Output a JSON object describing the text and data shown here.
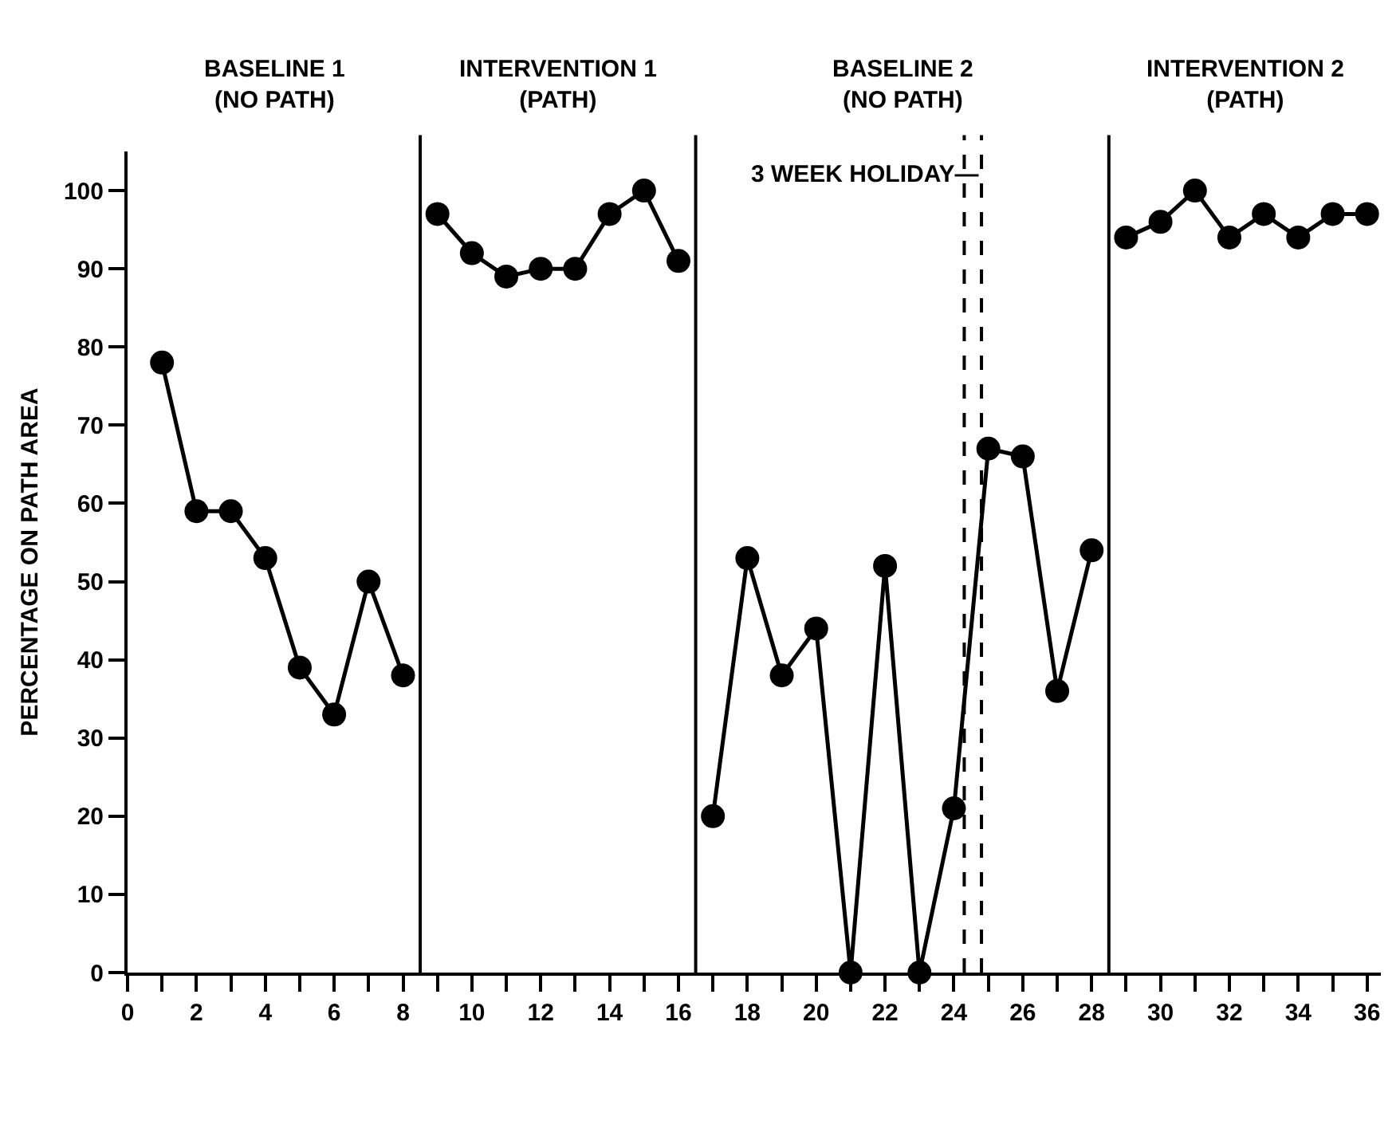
{
  "chart_data": {
    "type": "line",
    "ylabel": "PERCENTAGE ON PATH AREA",
    "series": [
      {
        "color": "#000000",
        "x": [
          1,
          2,
          3,
          4,
          5,
          6,
          7,
          8
        ],
        "values": [
          78,
          59,
          59,
          53,
          39,
          33,
          50,
          38
        ]
      },
      {
        "color": "#000000",
        "x": [
          9,
          10,
          11,
          12,
          13,
          14,
          15,
          16
        ],
        "values": [
          97,
          92,
          89,
          90,
          90,
          97,
          100,
          91
        ]
      },
      {
        "color": "#000000",
        "x": [
          17,
          18,
          19,
          20,
          21,
          22,
          23,
          24,
          25,
          26,
          27,
          28
        ],
        "values": [
          20,
          53,
          38,
          44,
          0,
          52,
          0,
          21,
          67,
          66,
          36,
          54
        ]
      },
      {
        "color": "#000000",
        "x": [
          29,
          30,
          31,
          32,
          33,
          34,
          35,
          36
        ],
        "values": [
          94,
          96,
          100,
          94,
          97,
          94,
          97,
          97
        ]
      }
    ],
    "xlim": [
      0,
      36.4
    ],
    "ylim": [
      0,
      105
    ],
    "xticks": [
      0,
      {
        "value": 1,
        "label": null
      },
      2,
      {
        "value": 3,
        "label": null
      },
      4,
      {
        "value": 5,
        "label": null
      },
      6,
      {
        "value": 7,
        "label": null
      },
      8,
      {
        "value": 9,
        "label": null
      },
      10,
      {
        "value": 11,
        "label": null
      },
      12,
      {
        "value": 13,
        "label": null
      },
      14,
      {
        "value": 15,
        "label": null
      },
      16,
      {
        "value": 17,
        "label": null
      },
      18,
      {
        "value": 19,
        "label": null
      },
      20,
      {
        "value": 21,
        "label": null
      },
      22,
      {
        "value": 23,
        "label": null
      },
      24,
      {
        "value": 25,
        "label": null
      },
      26,
      {
        "value": 27,
        "label": null
      },
      28,
      {
        "value": 29,
        "label": null
      },
      30,
      {
        "value": 31,
        "label": null
      },
      32,
      {
        "value": 33,
        "label": null
      },
      34,
      {
        "value": 35,
        "label": null
      },
      36
    ],
    "yticks": [
      0,
      10,
      20,
      30,
      40,
      50,
      60,
      70,
      80,
      90,
      100
    ],
    "ref_lines": [
      {
        "axis": "x",
        "value": 8.5,
        "line_style": "solid"
      },
      {
        "axis": "x",
        "value": 16.5,
        "line_style": "solid"
      },
      {
        "axis": "x",
        "value": 24.3,
        "line_style": "dashed"
      },
      {
        "axis": "x",
        "value": 24.8,
        "line_style": "dashed"
      },
      {
        "axis": "x",
        "value": 28.5,
        "line_style": "solid"
      }
    ],
    "annotations": [
      "BASELINE 1\n(NO PATH)",
      "INTERVENTION 1\n(PATH)",
      "BASELINE 2\n(NO PATH)",
      "INTERVENTION 2\n(PATH)",
      {
        "text": "3 WEEK HOLIDAY—",
        "x": 24.8,
        "y": 102
      }
    ],
    "grid": false,
    "marker": "circle",
    "line_style": "solid"
  }
}
